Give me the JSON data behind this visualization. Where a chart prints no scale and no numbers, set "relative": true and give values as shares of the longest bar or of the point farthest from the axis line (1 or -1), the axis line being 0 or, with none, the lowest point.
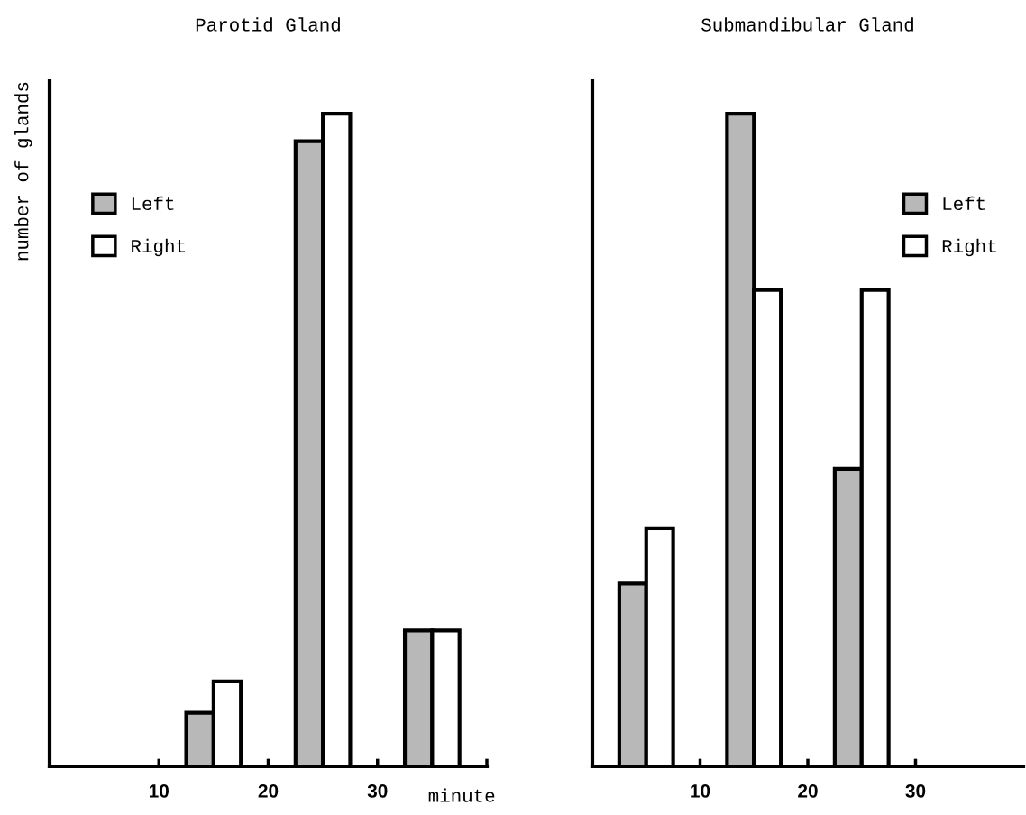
{
  "chart_data": [
    {
      "type": "bar",
      "title": "Parotid Gland",
      "ylabel": "number of glands",
      "xlabel": "minute",
      "relative": true,
      "xlim": [
        0,
        40
      ],
      "xticks": [
        10,
        20,
        30,
        {
          "value": 40,
          "label": null
        }
      ],
      "legend": "top left",
      "series": [
        {
          "name": "Left",
          "color": "#b8b8b8",
          "x": [
            13.75,
            23.75,
            33.75
          ],
          "values": [
            0.082,
            0.958,
            0.208
          ]
        },
        {
          "name": "Right",
          "color": "#ffffff",
          "x": [
            16.25,
            26.25,
            36.25
          ],
          "values": [
            0.13,
            1,
            0.208
          ]
        }
      ]
    },
    {
      "type": "bar",
      "title": "Submandibular Gland",
      "relative": true,
      "xlim": [
        0,
        40
      ],
      "xticks": [
        10,
        20,
        30
      ],
      "legend": "top right",
      "series": [
        {
          "name": "Left",
          "color": "#b8b8b8",
          "x": [
            3.75,
            13.75,
            23.75
          ],
          "values": [
            0.28,
            1,
            0.456
          ]
        },
        {
          "name": "Right",
          "color": "#ffffff",
          "x": [
            6.25,
            16.25,
            26.25
          ],
          "values": [
            0.365,
            0.73,
            0.73
          ]
        }
      ]
    }
  ]
}
